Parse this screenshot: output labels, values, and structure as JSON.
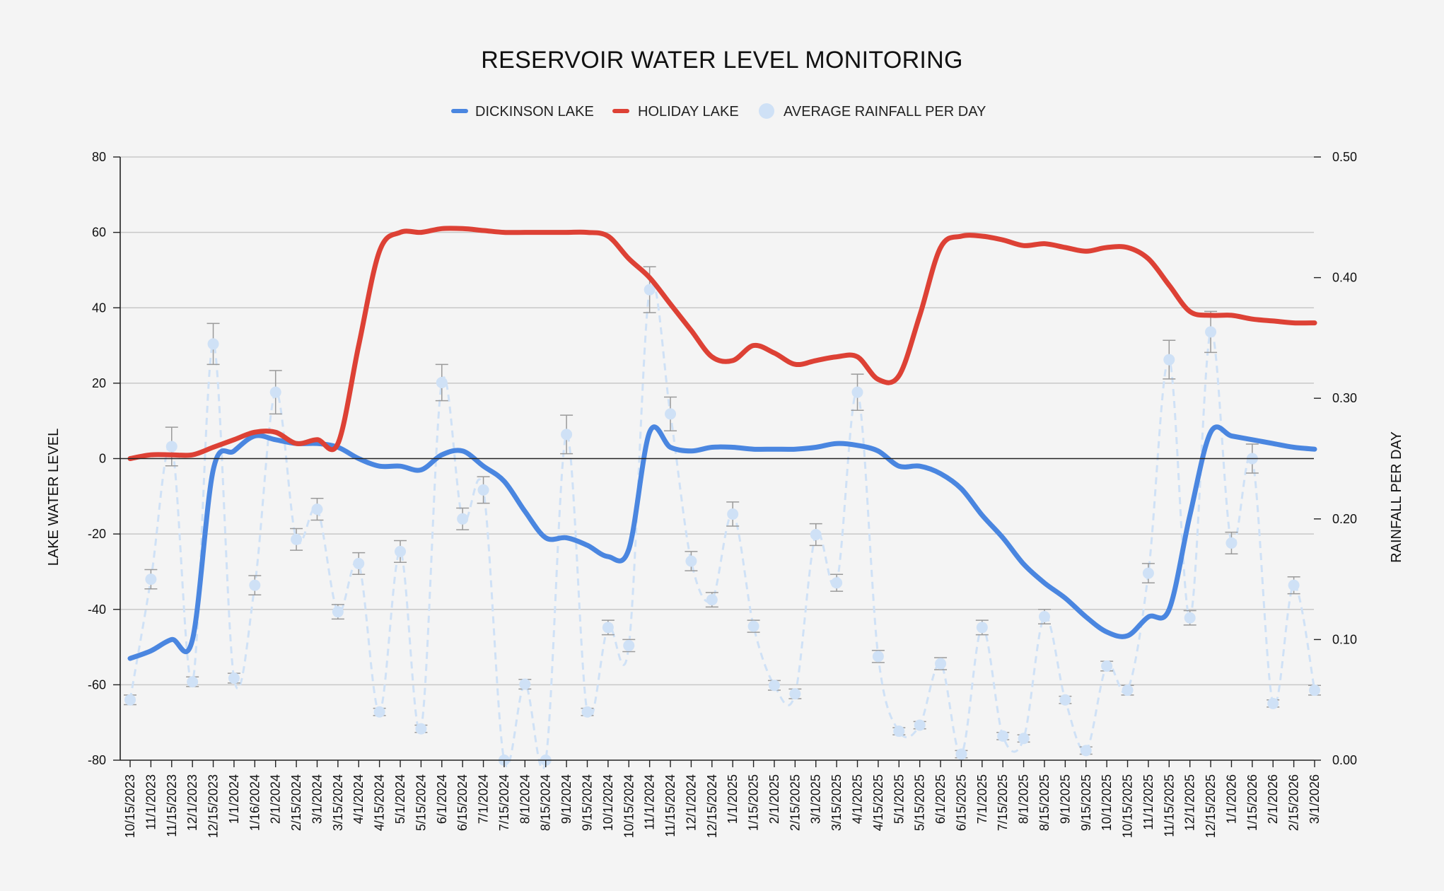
{
  "chart_data": {
    "type": "line",
    "title": "RESERVOIR WATER LEVEL MONITORING",
    "legend": {
      "position": "top-center",
      "entries": [
        "DICKINSON LAKE",
        "HOLIDAY LAKE",
        "AVERAGE RAINFALL PER DAY"
      ]
    },
    "y_left": {
      "label": "LAKE WATER LEVEL",
      "range": [
        -80,
        80
      ],
      "ticks": [
        80,
        60,
        40,
        20,
        0,
        -20,
        -40,
        -60,
        -80
      ],
      "tick_labels": [
        "80",
        "60",
        "40",
        "20",
        "0",
        "-20",
        "-40",
        "-60",
        "-80"
      ]
    },
    "y_right": {
      "label": "RAINFALL PER DAY",
      "range": [
        0,
        0.5
      ],
      "ticks": [
        0.5,
        0.4,
        0.3,
        0.2,
        0.1,
        0
      ],
      "tick_labels": [
        "0.50",
        "0.40",
        "0.30",
        "0.20",
        "0.10",
        "0.00"
      ]
    },
    "grid": true,
    "categories": [
      "10/15/2023",
      "11/1/2023",
      "11/15/2023",
      "12/1/2023",
      "12/15/2023",
      "1/1/2024",
      "1/16/2024",
      "2/1/2024",
      "2/15/2024",
      "3/1/2024",
      "3/15/2024",
      "4/1/2024",
      "4/15/2024",
      "5/1/2024",
      "5/15/2024",
      "6/1/2024",
      "6/15/2024",
      "7/1/2024",
      "7/15/2024",
      "8/1/2024",
      "8/15/2024",
      "9/1/2024",
      "9/15/2024",
      "10/1/2024",
      "10/15/2024",
      "11/1/2024",
      "11/15/2024",
      "12/1/2024",
      "12/15/2024",
      "1/1/2025",
      "1/15/2025",
      "2/1/2025",
      "2/15/2025",
      "3/1/2025",
      "3/15/2025",
      "4/1/2025",
      "4/15/2025",
      "5/1/2025",
      "5/15/2025",
      "6/1/2025",
      "6/15/2025",
      "7/1/2025",
      "7/15/2025",
      "8/1/2025",
      "8/15/2025",
      "9/1/2025",
      "9/15/2025",
      "10/1/2025",
      "10/15/2025",
      "11/1/2025",
      "11/15/2025",
      "12/1/2025",
      "12/15/2025",
      "1/1/2026",
      "1/15/2026",
      "2/1/2026",
      "2/15/2026",
      "3/1/2026"
    ],
    "series": [
      {
        "name": "DICKINSON LAKE",
        "axis": "left",
        "style": "line",
        "color": "#4a86e0",
        "values": [
          -53,
          -51,
          -48,
          -48,
          -3,
          2,
          6,
          5,
          4,
          4,
          3,
          0,
          -2,
          -2,
          -3,
          1,
          2,
          -2,
          -6,
          -14,
          -21,
          -21,
          -23,
          -26,
          -24,
          7,
          3,
          2,
          3,
          3,
          2.5,
          2.5,
          2.5,
          3,
          4,
          3.5,
          2,
          -2,
          -2,
          -4,
          -8,
          -15,
          -21,
          -28,
          -33,
          -37,
          -42,
          -46,
          -47,
          -42,
          -40,
          -15,
          7,
          6,
          5,
          4,
          3,
          2.5
        ]
      },
      {
        "name": "HOLIDAY LAKE",
        "axis": "left",
        "style": "line",
        "color": "#dd4135",
        "values": [
          0,
          1,
          1,
          1,
          3,
          5,
          7,
          7,
          4,
          5,
          4,
          30,
          55,
          60,
          60,
          61,
          61,
          60.5,
          60,
          60,
          60,
          60,
          60,
          59,
          53,
          48,
          41,
          34,
          27,
          26,
          30,
          28,
          25,
          26,
          27,
          27,
          21,
          22,
          38,
          56,
          59,
          59,
          58,
          56.5,
          57,
          56,
          55,
          56,
          56,
          53,
          46,
          39,
          38,
          38,
          37,
          36.5,
          36,
          36
        ]
      },
      {
        "name": "AVERAGE RAINFALL PER DAY",
        "axis": "right",
        "style": "scatter-dashed",
        "color": "#cfe1f6",
        "error_color": "#9a9a9a",
        "values": [
          0.05,
          0.15,
          0.26,
          0.065,
          0.345,
          0.068,
          0.145,
          0.305,
          0.183,
          0.208,
          0.123,
          0.163,
          0.04,
          0.173,
          0.026,
          0.313,
          0.2,
          0.224,
          0.0,
          0.063,
          0.0,
          0.27,
          0.04,
          0.11,
          0.095,
          0.39,
          0.287,
          0.165,
          0.133,
          0.204,
          0.111,
          0.062,
          0.055,
          0.187,
          0.147,
          0.305,
          0.086,
          0.024,
          0.029,
          0.08,
          0.005,
          0.11,
          0.02,
          0.018,
          0.119,
          0.05,
          0.008,
          0.078,
          0.058,
          0.155,
          0.332,
          0.118,
          0.355,
          0.18,
          0.25,
          0.047,
          0.145,
          0.058
        ],
        "errors": [
          0.004,
          0.008,
          0.016,
          0.004,
          0.017,
          0.004,
          0.008,
          0.018,
          0.009,
          0.009,
          0.006,
          0.009,
          0.003,
          0.009,
          0.003,
          0.015,
          0.009,
          0.011,
          0.0,
          0.004,
          0.0,
          0.016,
          0.003,
          0.006,
          0.005,
          0.019,
          0.014,
          0.008,
          0.006,
          0.01,
          0.005,
          0.004,
          0.004,
          0.009,
          0.007,
          0.015,
          0.005,
          0.003,
          0.003,
          0.005,
          0.003,
          0.006,
          0.003,
          0.003,
          0.006,
          0.003,
          0.003,
          0.004,
          0.004,
          0.008,
          0.016,
          0.006,
          0.017,
          0.009,
          0.012,
          0.003,
          0.007,
          0.004
        ]
      }
    ]
  }
}
